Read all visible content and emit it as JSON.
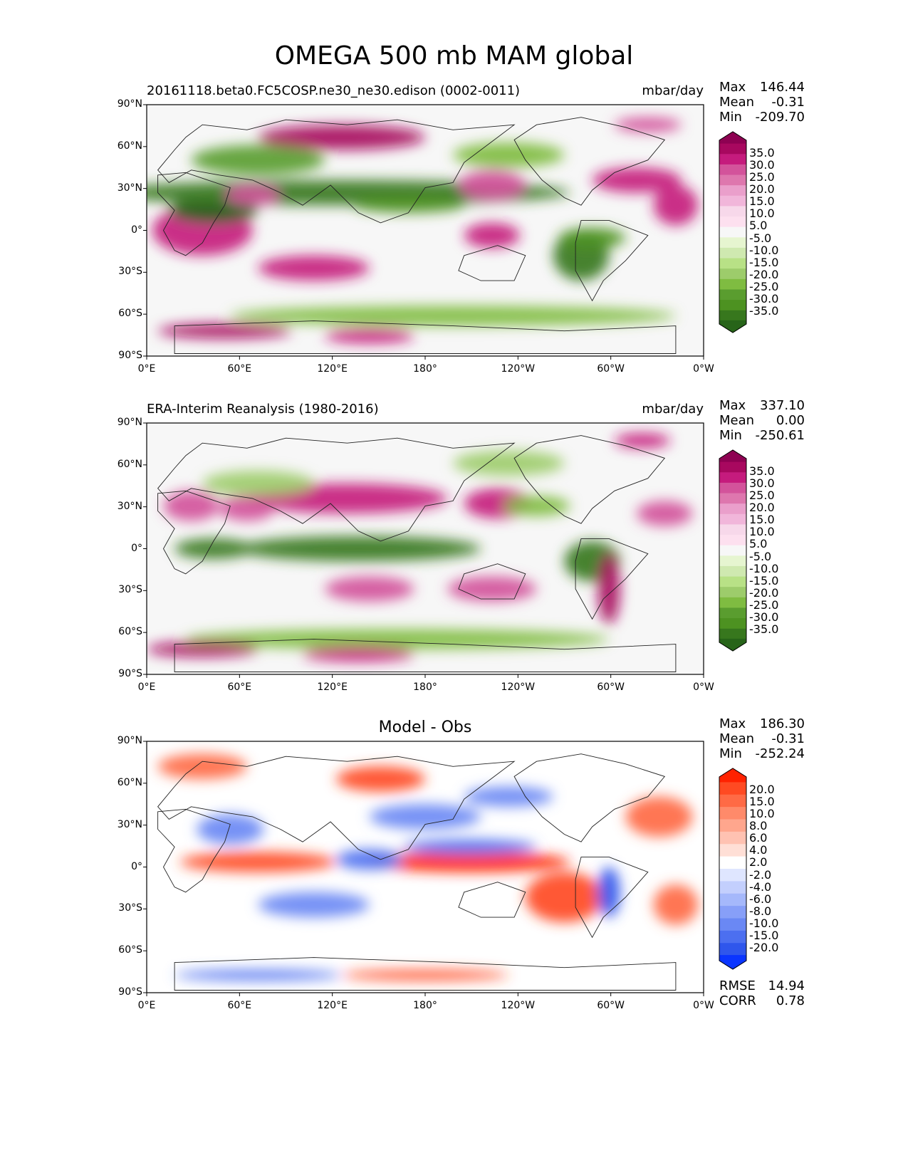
{
  "title": "OMEGA 500 mb MAM global",
  "panels": [
    {
      "id": "model",
      "title_left": "20161118.beta0.FC5COSP.ne30_ne30.edison (0002-0011)",
      "title_center": "",
      "units": "mbar/day",
      "stats": {
        "max_label": "Max",
        "max": "146.44",
        "mean_label": "Mean",
        "mean": "-0.31",
        "min_label": "Min",
        "min": "-209.70"
      },
      "colorbar": {
        "labels": [
          "35.0",
          "30.0",
          "25.0",
          "20.0",
          "15.0",
          "10.0",
          "5.0",
          "-5.0",
          "-10.0",
          "-15.0",
          "-20.0",
          "-25.0",
          "-30.0",
          "-35.0"
        ],
        "colors": [
          "#8e0152",
          "#a8085f",
          "#c51b7d",
          "#d3539b",
          "#de77ae",
          "#ea9fcb",
          "#f1b6da",
          "#f7d8ea",
          "#fde0ef",
          "#f7f7f7",
          "#e6f5d0",
          "#cfe9b0",
          "#b8e186",
          "#9dcc6b",
          "#7fbc41",
          "#5a9d2f",
          "#4d9221",
          "#37771d",
          "#276419"
        ]
      }
    },
    {
      "id": "obs",
      "title_left": "ERA-Interim Reanalysis (1980-2016)",
      "title_center": "",
      "units": "mbar/day",
      "stats": {
        "max_label": "Max",
        "max": "337.10",
        "mean_label": "Mean",
        "mean": "0.00",
        "min_label": "Min",
        "min": "-250.61"
      },
      "colorbar": {
        "labels": [
          "35.0",
          "30.0",
          "25.0",
          "20.0",
          "15.0",
          "10.0",
          "5.0",
          "-5.0",
          "-10.0",
          "-15.0",
          "-20.0",
          "-25.0",
          "-30.0",
          "-35.0"
        ],
        "colors": [
          "#8e0152",
          "#a8085f",
          "#c51b7d",
          "#d3539b",
          "#de77ae",
          "#ea9fcb",
          "#f1b6da",
          "#f7d8ea",
          "#fde0ef",
          "#f7f7f7",
          "#e6f5d0",
          "#cfe9b0",
          "#b8e186",
          "#9dcc6b",
          "#7fbc41",
          "#5a9d2f",
          "#4d9221",
          "#37771d",
          "#276419"
        ]
      }
    },
    {
      "id": "diff",
      "title_left": "",
      "title_center": "Model - Obs",
      "units": "",
      "stats": {
        "max_label": "Max",
        "max": "186.30",
        "mean_label": "Mean",
        "mean": "-0.31",
        "min_label": "Min",
        "min": "-252.24"
      },
      "extra_stats": {
        "rmse_label": "RMSE",
        "rmse": "14.94",
        "corr_label": "CORR",
        "corr": "0.78"
      },
      "colorbar": {
        "labels": [
          "20.0",
          "15.0",
          "10.0",
          "8.0",
          "6.0",
          "4.0",
          "2.0",
          "-2.0",
          "-4.0",
          "-6.0",
          "-8.0",
          "-10.0",
          "-15.0",
          "-20.0"
        ],
        "colors": [
          "#ff2200",
          "#ff4a22",
          "#ff6a45",
          "#ff8a6a",
          "#ffa68d",
          "#ffc2b2",
          "#ffdfd6",
          "#ffffff",
          "#dfe6ff",
          "#c3cffd",
          "#a5b8fb",
          "#879ff8",
          "#6a88f4",
          "#4c6ff0",
          "#2f56ec",
          "#0a35ff"
        ]
      }
    }
  ],
  "lat_labels": [
    "90°N",
    "60°N",
    "30°N",
    "0°",
    "30°S",
    "60°S",
    "90°S"
  ],
  "lon_labels": [
    "0°E",
    "60°E",
    "120°E",
    "180°",
    "120°W",
    "60°W",
    "0°W"
  ]
}
